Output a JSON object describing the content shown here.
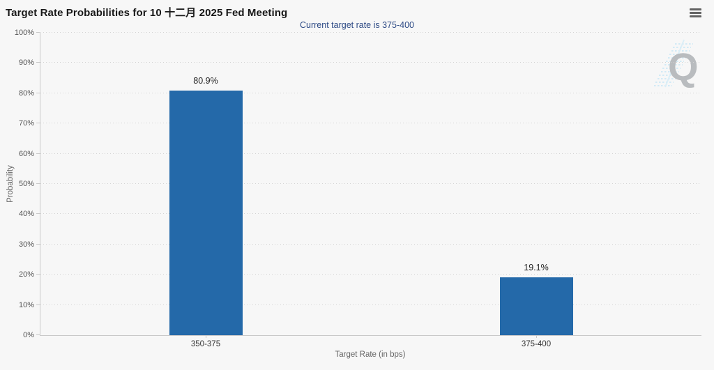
{
  "header": {
    "title": "Target Rate Probabilities for 10 十二月 2025 Fed Meeting",
    "subtitle": "Current target rate is 375-400",
    "menu_icon": "hamburger-menu",
    "watermark_letter": "Q"
  },
  "chart_data": {
    "type": "bar",
    "title": "Target Rate Probabilities for 10 十二月 2025 Fed Meeting",
    "subtitle": "Current target rate is 375-400",
    "categories": [
      "350-375",
      "375-400"
    ],
    "values": [
      80.9,
      19.1
    ],
    "data_labels": [
      "80.9%",
      "19.1%"
    ],
    "xlabel": "Target Rate (in bps)",
    "ylabel": "Probability",
    "ylim": [
      0,
      100
    ],
    "ytick_step": 10,
    "ytick_labels": [
      "0%",
      "10%",
      "20%",
      "30%",
      "40%",
      "50%",
      "60%",
      "70%",
      "80%",
      "90%",
      "100%"
    ],
    "bar_color": "#2469a9",
    "subtitle_color": "#2d4a85",
    "grid": "dotted-horizontal",
    "legend": "none"
  }
}
